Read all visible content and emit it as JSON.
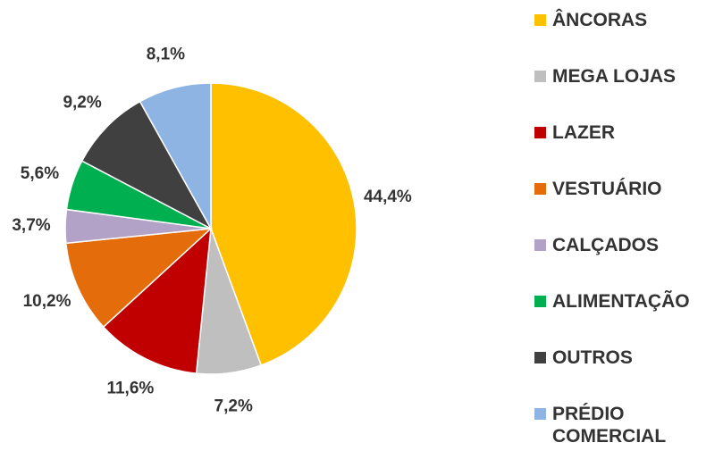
{
  "chart_data": {
    "type": "pie",
    "categories": [
      "ÂNCORAS",
      "MEGA LOJAS",
      "LAZER",
      "VESTUÁRIO",
      "CALÇADOS",
      "ALIMENTAÇÃO",
      "OUTROS",
      "PRÉDIO COMERCIAL"
    ],
    "values": [
      44.4,
      7.2,
      11.6,
      10.2,
      3.7,
      5.6,
      9.2,
      8.1
    ],
    "value_labels": [
      "44,4%",
      "7,2%",
      "11,6%",
      "10,2%",
      "3,7%",
      "5,6%",
      "9,2%",
      "8,1%"
    ],
    "colors": [
      "#FFC000",
      "#BFBFBF",
      "#C00000",
      "#E46C0A",
      "#B3A2C7",
      "#00B050",
      "#404040",
      "#8EB4E3"
    ],
    "legend": "right"
  }
}
